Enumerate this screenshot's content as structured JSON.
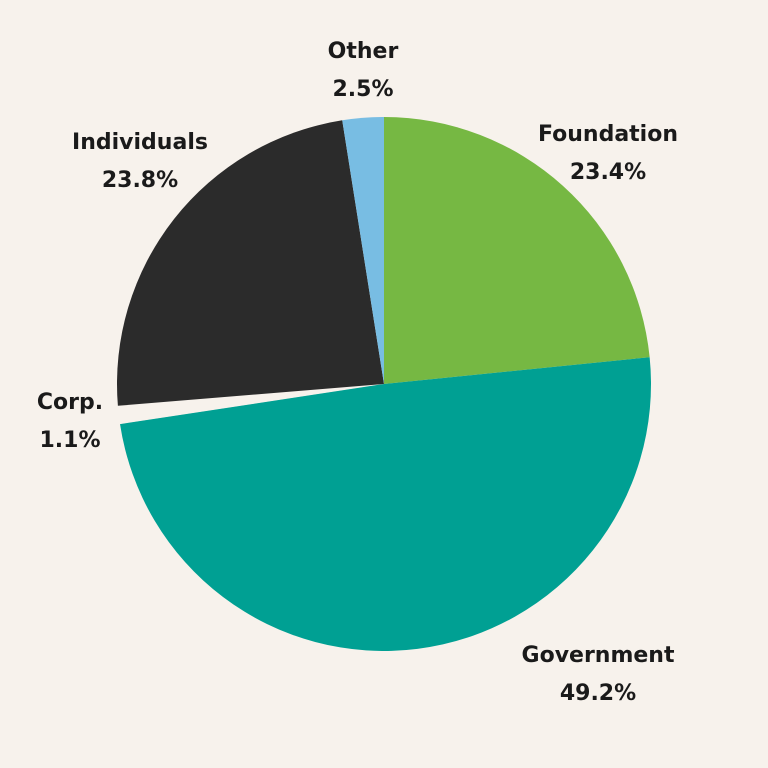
{
  "colors": {
    "background": "#f7f2ec",
    "label_text": "#1a1a1a"
  },
  "chart_data": {
    "type": "pie",
    "title": "",
    "start": "12 o'clock, clockwise",
    "slices": [
      {
        "label": "Foundation",
        "value": 23.4,
        "value_label": "23.4%",
        "color": "#76b843"
      },
      {
        "label": "Government",
        "value": 49.2,
        "value_label": "49.2%",
        "color": "#00a093"
      },
      {
        "label": "Corp.",
        "value": 1.1,
        "value_label": "1.1%",
        "color": "#f7f2ec",
        "exploded": true
      },
      {
        "label": "Individuals",
        "value": 23.8,
        "value_label": "23.8%",
        "color": "#2b2b2b"
      },
      {
        "label": "Other",
        "value": 2.5,
        "value_label": "2.5%",
        "color": "#78bde3"
      }
    ]
  }
}
